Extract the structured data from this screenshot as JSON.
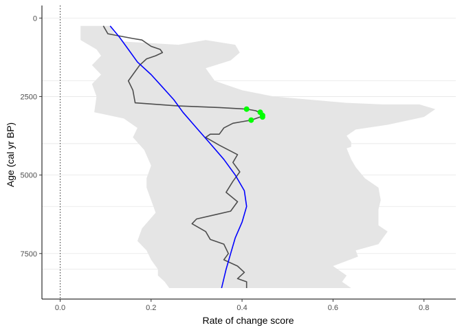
{
  "chart_data": {
    "type": "line",
    "xlabel": "Rate of change score",
    "ylabel": "Age (cal yr BP)",
    "xlim": [
      -0.04,
      0.87
    ],
    "ylim": [
      -400,
      8950
    ],
    "y_reversed": true,
    "x_ticks": [
      0.0,
      0.2,
      0.4,
      0.6,
      0.8
    ],
    "x_tick_labels": [
      "0.0",
      "0.2",
      "0.4",
      "0.6",
      "0.8"
    ],
    "y_ticks": [
      0,
      2500,
      5000,
      7500
    ],
    "y_tick_labels": [
      "0",
      "2500",
      "5000",
      "7500"
    ],
    "y_minor_gridlines": [
      2000,
      4000,
      6000,
      8000
    ],
    "zero_reference_line": {
      "x": 0.0,
      "style": "dotted"
    },
    "colors": {
      "band": "#e5e5e5",
      "roc_line": "#4d4d4d",
      "trend_line": "#0000ff",
      "peak_points": "#00ff00",
      "grid": "#e6e6e6",
      "axis": "#000000"
    },
    "envelope_upper": [
      [
        0.11,
        250
      ],
      [
        0.12,
        500
      ],
      [
        0.14,
        750
      ],
      [
        0.2,
        800
      ],
      [
        0.26,
        850
      ],
      [
        0.32,
        700
      ],
      [
        0.385,
        850
      ],
      [
        0.395,
        1100
      ],
      [
        0.375,
        1350
      ],
      [
        0.32,
        1600
      ],
      [
        0.34,
        2000
      ],
      [
        0.4,
        2300
      ],
      [
        0.47,
        2500
      ],
      [
        0.55,
        2600
      ],
      [
        0.63,
        2700
      ],
      [
        0.71,
        2750
      ],
      [
        0.79,
        2750
      ],
      [
        0.825,
        2900
      ],
      [
        0.8,
        3150
      ],
      [
        0.72,
        3400
      ],
      [
        0.65,
        3550
      ],
      [
        0.63,
        3750
      ],
      [
        0.64,
        3950
      ],
      [
        0.64,
        4100
      ],
      [
        0.63,
        4150
      ],
      [
        0.64,
        4500
      ],
      [
        0.65,
        4750
      ],
      [
        0.67,
        5100
      ],
      [
        0.7,
        5400
      ],
      [
        0.705,
        5800
      ],
      [
        0.7,
        6100
      ],
      [
        0.7,
        6600
      ],
      [
        0.72,
        6800
      ],
      [
        0.7,
        7200
      ],
      [
        0.65,
        7400
      ],
      [
        0.655,
        7600
      ],
      [
        0.6,
        7900
      ],
      [
        0.63,
        8200
      ],
      [
        0.62,
        8400
      ],
      [
        0.64,
        8600
      ]
    ],
    "envelope_lower": [
      [
        0.045,
        250
      ],
      [
        0.045,
        700
      ],
      [
        0.08,
        1000
      ],
      [
        0.09,
        1200
      ],
      [
        0.07,
        1500
      ],
      [
        0.09,
        1800
      ],
      [
        0.07,
        2100
      ],
      [
        0.08,
        2500
      ],
      [
        0.075,
        3000
      ],
      [
        0.14,
        3200
      ],
      [
        0.17,
        3500
      ],
      [
        0.16,
        3800
      ],
      [
        0.185,
        4200
      ],
      [
        0.2,
        4700
      ],
      [
        0.19,
        5100
      ],
      [
        0.19,
        5400
      ],
      [
        0.2,
        5800
      ],
      [
        0.21,
        6200
      ],
      [
        0.18,
        6700
      ],
      [
        0.17,
        7100
      ],
      [
        0.19,
        7400
      ],
      [
        0.2,
        7700
      ],
      [
        0.215,
        8000
      ],
      [
        0.215,
        8200
      ],
      [
        0.23,
        8400
      ],
      [
        0.24,
        8600
      ]
    ],
    "series": [
      {
        "values": [
          [
            0.095,
            250
          ],
          [
            0.105,
            500
          ],
          [
            0.16,
            650
          ],
          [
            0.18,
            700
          ],
          [
            0.2,
            900
          ],
          [
            0.22,
            1000
          ],
          [
            0.225,
            1100
          ],
          [
            0.21,
            1200
          ],
          [
            0.19,
            1300
          ],
          [
            0.175,
            1500
          ],
          [
            0.165,
            1700
          ],
          [
            0.15,
            2000
          ],
          [
            0.16,
            2300
          ],
          [
            0.165,
            2700
          ],
          [
            0.26,
            2800
          ],
          [
            0.35,
            2850
          ],
          [
            0.41,
            2900
          ],
          [
            0.43,
            2950
          ],
          [
            0.445,
            3050
          ],
          [
            0.44,
            3150
          ],
          [
            0.42,
            3250
          ],
          [
            0.4,
            3300
          ],
          [
            0.38,
            3350
          ],
          [
            0.36,
            3500
          ],
          [
            0.35,
            3700
          ],
          [
            0.33,
            3700
          ],
          [
            0.32,
            3800
          ],
          [
            0.35,
            4050
          ],
          [
            0.39,
            4350
          ],
          [
            0.38,
            4600
          ],
          [
            0.395,
            4900
          ],
          [
            0.38,
            5200
          ],
          [
            0.365,
            5550
          ],
          [
            0.39,
            5850
          ],
          [
            0.375,
            6150
          ],
          [
            0.345,
            6250
          ],
          [
            0.3,
            6400
          ],
          [
            0.29,
            6550
          ],
          [
            0.32,
            6800
          ],
          [
            0.33,
            7050
          ],
          [
            0.36,
            7200
          ],
          [
            0.37,
            7500
          ],
          [
            0.36,
            7700
          ],
          [
            0.39,
            7900
          ],
          [
            0.405,
            8100
          ],
          [
            0.39,
            8300
          ],
          [
            0.41,
            8400
          ],
          [
            0.41,
            8600
          ]
        ]
      },
      {
        "values": [
          [
            0.11,
            250
          ],
          [
            0.13,
            600
          ],
          [
            0.15,
            1000
          ],
          [
            0.17,
            1400
          ],
          [
            0.2,
            1800
          ],
          [
            0.225,
            2200
          ],
          [
            0.25,
            2600
          ],
          [
            0.27,
            3000
          ],
          [
            0.3,
            3500
          ],
          [
            0.33,
            4000
          ],
          [
            0.36,
            4500
          ],
          [
            0.385,
            5000
          ],
          [
            0.405,
            5500
          ],
          [
            0.41,
            6000
          ],
          [
            0.4,
            6500
          ],
          [
            0.385,
            7000
          ],
          [
            0.375,
            7500
          ],
          [
            0.365,
            8000
          ],
          [
            0.355,
            8600
          ]
        ]
      }
    ],
    "peak_points": [
      [
        0.41,
        2900
      ],
      [
        0.44,
        3000
      ],
      [
        0.445,
        3100
      ],
      [
        0.445,
        3150
      ],
      [
        0.42,
        3250
      ]
    ]
  }
}
